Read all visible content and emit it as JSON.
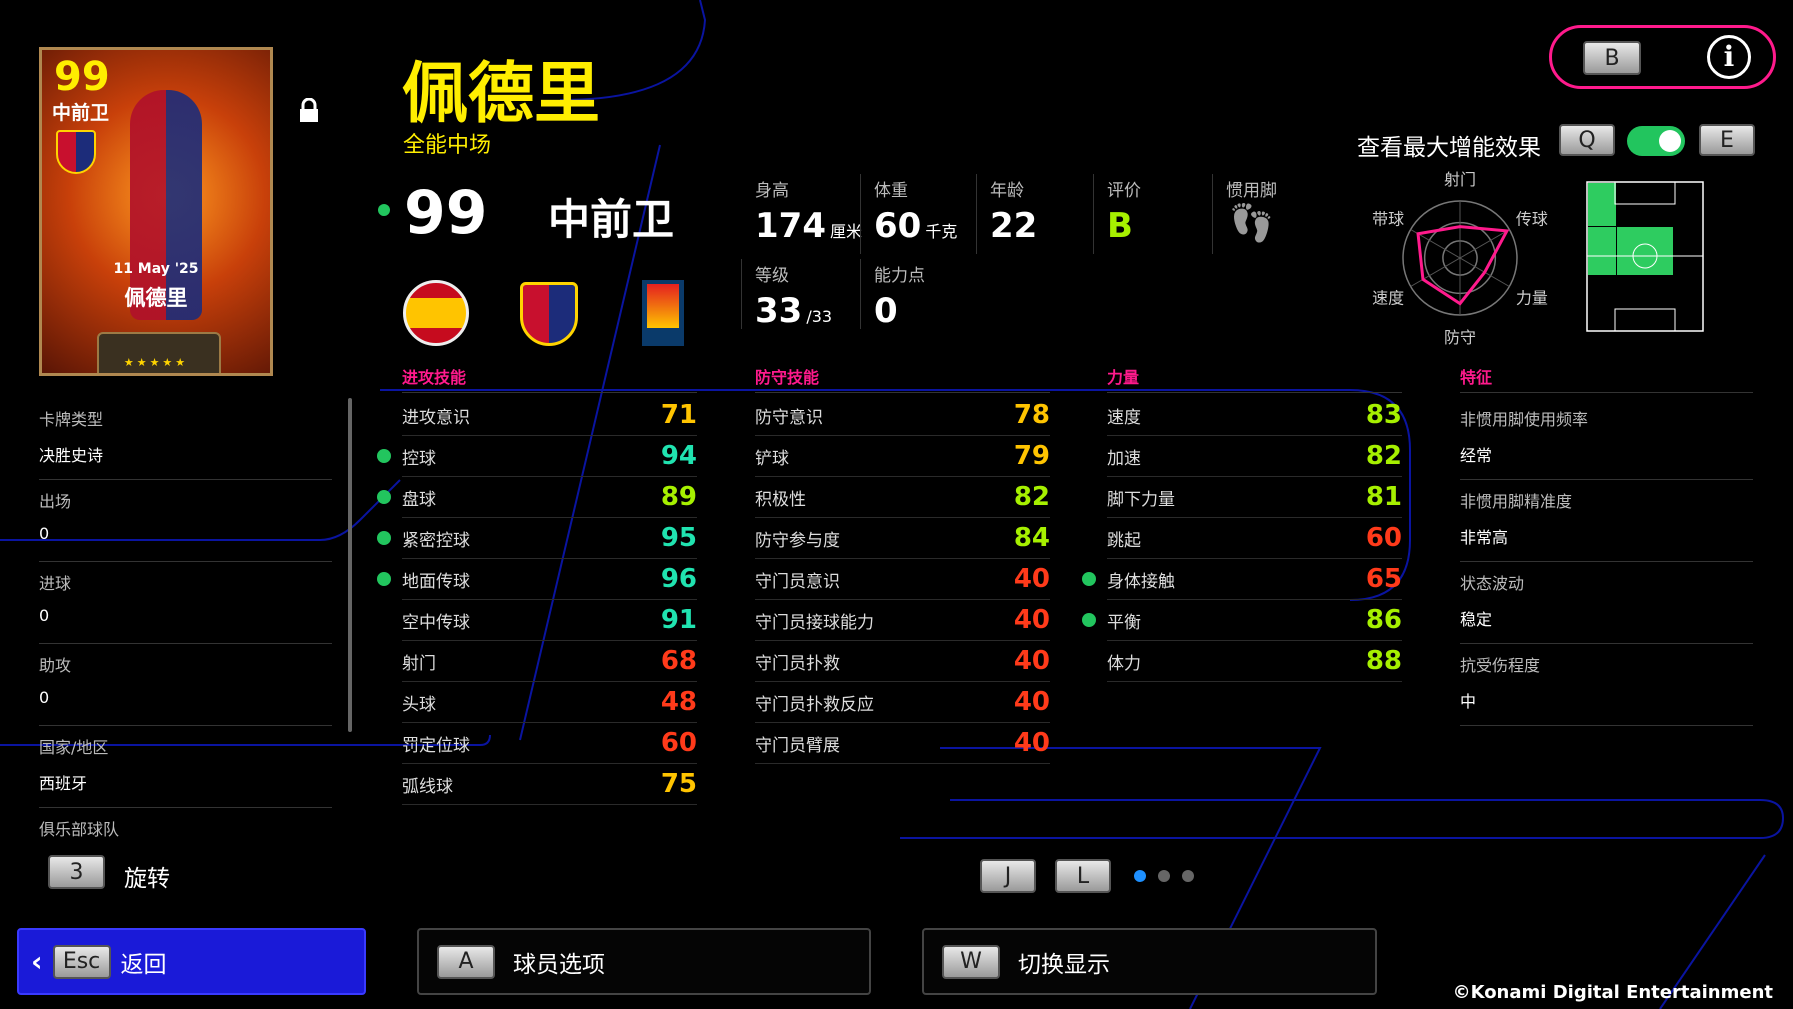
{
  "card": {
    "rating": "99",
    "position": "中前卫",
    "date": "11 May '25",
    "name": "佩德里",
    "stars": "★★★★★"
  },
  "header": {
    "name": "佩德里",
    "playstyle": "全能中场",
    "rating": "99",
    "position": "中前卫"
  },
  "profile": {
    "height": {
      "label": "身高",
      "value": "174",
      "unit": "厘米"
    },
    "weight": {
      "label": "体重",
      "value": "60",
      "unit": "千克"
    },
    "age": {
      "label": "年龄",
      "value": "22"
    },
    "grade": {
      "label": "评价",
      "value": "B",
      "color": "#a6f000"
    },
    "foot": {
      "label": "惯用脚",
      "icon": "footprints-icon"
    },
    "level": {
      "label": "等级",
      "value": "33",
      "max": "/33"
    },
    "points": {
      "label": "能力点",
      "value": "0"
    }
  },
  "boost": {
    "label": "查看最大增能效果",
    "key_left": "Q",
    "key_right": "E",
    "enabled": true
  },
  "topright": {
    "key": "B",
    "info_icon": "info-icon"
  },
  "radar": {
    "axes": [
      "射门",
      "传球",
      "力量",
      "防守",
      "速度",
      "带球"
    ],
    "values": [
      55,
      95,
      50,
      80,
      75,
      85
    ],
    "color": "#ff1a8c"
  },
  "sections": [
    {
      "title": "进攻技能",
      "rows": [
        [
          "进攻意识",
          "71",
          false
        ],
        [
          "控球",
          "94",
          true
        ],
        [
          "盘球",
          "89",
          true
        ],
        [
          "紧密控球",
          "95",
          true
        ],
        [
          "地面传球",
          "96",
          true
        ],
        [
          "空中传球",
          "91",
          false
        ],
        [
          "射门",
          "68",
          false
        ],
        [
          "头球",
          "48",
          false
        ],
        [
          "罚定位球",
          "60",
          false
        ],
        [
          "弧线球",
          "75",
          false
        ]
      ]
    },
    {
      "title": "防守技能",
      "rows": [
        [
          "防守意识",
          "78",
          false
        ],
        [
          "铲球",
          "79",
          false
        ],
        [
          "积极性",
          "82",
          false
        ],
        [
          "防守参与度",
          "84",
          false
        ],
        [
          "守门员意识",
          "40",
          false
        ],
        [
          "守门员接球能力",
          "40",
          false
        ],
        [
          "守门员扑救",
          "40",
          false
        ],
        [
          "守门员扑救反应",
          "40",
          false
        ],
        [
          "守门员臂展",
          "40",
          false
        ]
      ]
    },
    {
      "title": "力量",
      "rows": [
        [
          "速度",
          "83",
          false
        ],
        [
          "加速",
          "82",
          false
        ],
        [
          "脚下力量",
          "81",
          false
        ],
        [
          "跳起",
          "60",
          false
        ],
        [
          "身体接触",
          "65",
          true
        ],
        [
          "平衡",
          "86",
          true
        ],
        [
          "体力",
          "88",
          false
        ]
      ]
    }
  ],
  "traits": {
    "title": "特征",
    "items": [
      [
        "非惯用脚使用频率",
        "经常"
      ],
      [
        "非惯用脚精准度",
        "非常高"
      ],
      [
        "状态波动",
        "稳定"
      ],
      [
        "抗受伤程度",
        "中"
      ]
    ]
  },
  "left": {
    "items": [
      [
        "卡牌类型",
        "决胜史诗"
      ],
      [
        "出场",
        "0"
      ],
      [
        "进球",
        "0"
      ],
      [
        "助攻",
        "0"
      ],
      [
        "国家/地区",
        "西班牙"
      ],
      [
        "俱乐部球队",
        ""
      ]
    ]
  },
  "rotate": {
    "key": "3",
    "label": "旋转"
  },
  "pager": {
    "prev_key": "J",
    "next_key": "L",
    "pages": 3,
    "current": 1
  },
  "bottom": {
    "back_key": "Esc",
    "back_label": "返回",
    "options_key": "A",
    "options_label": "球员选项",
    "switch_key": "W",
    "switch_label": "切换显示"
  },
  "copyright": "©Konami Digital Entertainment",
  "colors": {
    "accent": "#ff1a8c",
    "title": "#ffee00",
    "active_button": "#1a1ad8"
  }
}
